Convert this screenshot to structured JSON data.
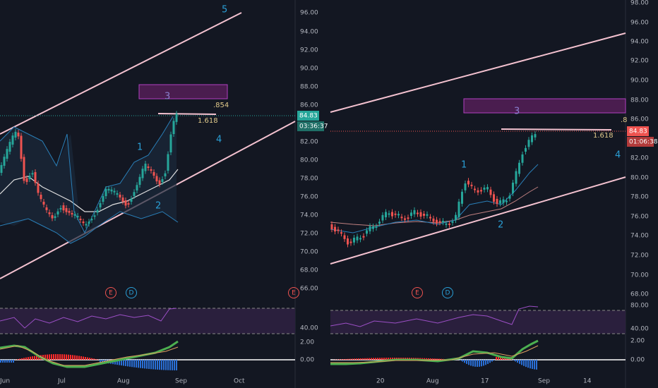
{
  "left_pane": {
    "price_axis": [
      "96.00",
      "94.00",
      "92.00",
      "90.00",
      "88.00",
      "86.00",
      "82.00",
      "80.00",
      "78.00",
      "76.00",
      "74.00",
      "72.00",
      "70.00",
      "68.00",
      "66.00"
    ],
    "price_tag": "84.83",
    "countdown": "03:36:37",
    "rsi_axis": [
      "40.00"
    ],
    "macd_axis": [
      "2.00",
      "0.00"
    ],
    "time_axis": [
      "Jun",
      "Jul",
      "Aug",
      "Sep",
      "Oct"
    ],
    "annotations": [
      "5",
      "3",
      ".854",
      "1.618",
      "4",
      "1",
      "2"
    ],
    "events": [
      "E",
      "D",
      "E"
    ]
  },
  "right_pane": {
    "price_axis": [
      "98.00",
      "96.00",
      "94.00",
      "92.00",
      "90.00",
      "88.00",
      "86.00",
      "82.00",
      "80.00",
      "78.00",
      "76.00",
      "74.00",
      "72.00",
      "70.00",
      "68.00"
    ],
    "price_tag": "84.83",
    "countdown": "01:06:38",
    "rsi_axis": [
      "80.00",
      "40.00"
    ],
    "macd_axis": [
      "2.00",
      "0.00"
    ],
    "time_axis": [
      "20",
      "Aug",
      "17",
      "Sep",
      "14"
    ],
    "annotations": [
      "3",
      "1.618",
      "4",
      "1",
      "2",
      ".8"
    ],
    "events": [
      "E",
      "D"
    ]
  }
}
